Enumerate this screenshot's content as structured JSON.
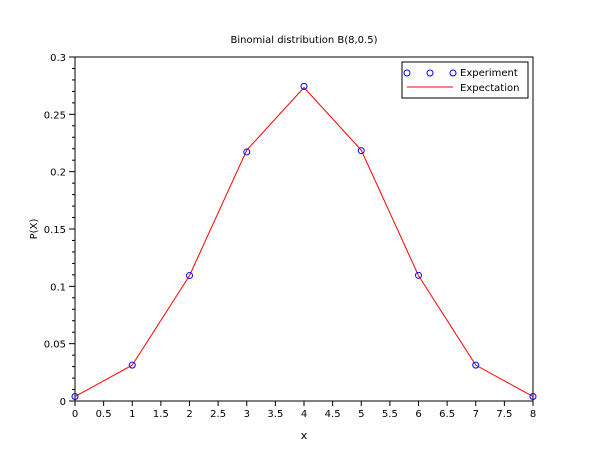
{
  "chart_data": {
    "type": "line",
    "title": "Binomial distribution B(8,0.5)",
    "xlabel": "x",
    "ylabel": "P(X)",
    "xlim": [
      0,
      8
    ],
    "ylim": [
      0,
      0.3
    ],
    "xticks": [
      "0",
      "0.5",
      "1",
      "1.5",
      "2",
      "2.5",
      "3",
      "3.5",
      "4",
      "4.5",
      "5",
      "5.5",
      "6",
      "6.5",
      "7",
      "7.5",
      "8"
    ],
    "yticks": [
      "0",
      "0.05",
      "0.1",
      "0.15",
      "0.2",
      "0.25",
      "0.3"
    ],
    "grid": false,
    "legend_position": "top-right",
    "x": [
      0,
      1,
      2,
      3,
      4,
      5,
      6,
      7,
      8
    ],
    "series": [
      {
        "name": "Experiment",
        "style": "markers",
        "marker": "circle",
        "color": "#0000ff",
        "values": [
          0.0039,
          0.0313,
          0.1094,
          0.2172,
          0.2744,
          0.2183,
          0.1096,
          0.0313,
          0.0039
        ]
      },
      {
        "name": "Expectation",
        "style": "line",
        "color": "#ff0000",
        "values": [
          0.0039,
          0.03125,
          0.109375,
          0.21875,
          0.2734,
          0.21875,
          0.109375,
          0.03125,
          0.0039
        ]
      }
    ]
  }
}
